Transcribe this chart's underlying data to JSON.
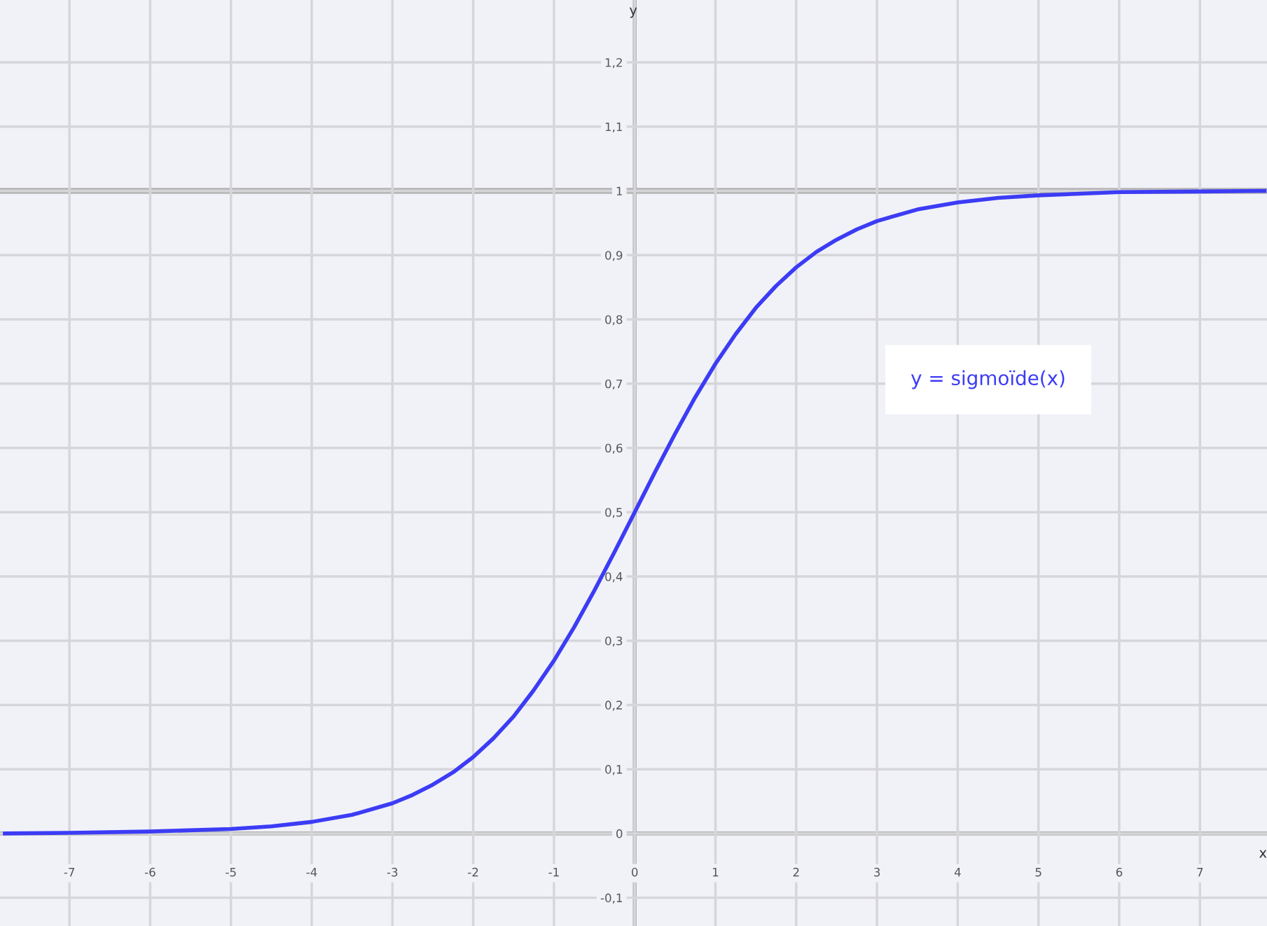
{
  "chart_data": {
    "type": "line",
    "xlabel": "x",
    "ylabel": "y",
    "annotations": [
      "y = sigmoïde(x)"
    ],
    "x": [
      -7.8,
      -7,
      -6,
      -5,
      -4.5,
      -4,
      -3.5,
      -3,
      -2.75,
      -2.5,
      -2.25,
      -2,
      -1.75,
      -1.5,
      -1.25,
      -1,
      -0.75,
      -0.5,
      -0.25,
      0,
      0.25,
      0.5,
      0.75,
      1,
      1.25,
      1.5,
      1.75,
      2,
      2.25,
      2.5,
      2.75,
      3,
      3.5,
      4,
      4.5,
      5,
      6,
      7,
      7.8
    ],
    "series": [
      {
        "color": "#3c3cf5",
        "values": [
          0.0,
          0.001,
          0.003,
          0.007,
          0.011,
          0.018,
          0.029,
          0.047,
          0.06,
          0.076,
          0.095,
          0.119,
          0.148,
          0.182,
          0.223,
          0.269,
          0.321,
          0.378,
          0.438,
          0.5,
          0.562,
          0.622,
          0.679,
          0.731,
          0.777,
          0.818,
          0.852,
          0.881,
          0.905,
          0.924,
          0.94,
          0.953,
          0.971,
          0.982,
          0.989,
          0.993,
          0.998,
          0.999,
          1.0
        ]
      }
    ],
    "xlim": [
      -7.86,
      7.83
    ],
    "ylim": [
      -0.144,
      1.297
    ],
    "xticks": [
      -7,
      -6,
      -5,
      -4,
      -3,
      -2,
      -1,
      0,
      1,
      2,
      3,
      4,
      5,
      6,
      7
    ],
    "yticks": [
      {
        "value": -0.1,
        "label": "-0,1"
      },
      0,
      {
        "value": 0.1,
        "label": "0,1"
      },
      {
        "value": 0.2,
        "label": "0,2"
      },
      {
        "value": 0.3,
        "label": "0,3"
      },
      {
        "value": 0.4,
        "label": "0,4"
      },
      {
        "value": 0.5,
        "label": "0,5"
      },
      {
        "value": 0.6,
        "label": "0,6"
      },
      {
        "value": 0.7,
        "label": "0,7"
      },
      {
        "value": 0.8,
        "label": "0,8"
      },
      {
        "value": 0.9,
        "label": "0,9"
      },
      1,
      {
        "value": 1.1,
        "label": "1,1"
      },
      {
        "value": 1.2,
        "label": "1,2"
      }
    ],
    "ref_lines": [
      {
        "axis": "y",
        "value": 1,
        "color": "#b4b4b4"
      }
    ],
    "grid": true,
    "line_style": "solid",
    "marker": "none"
  }
}
